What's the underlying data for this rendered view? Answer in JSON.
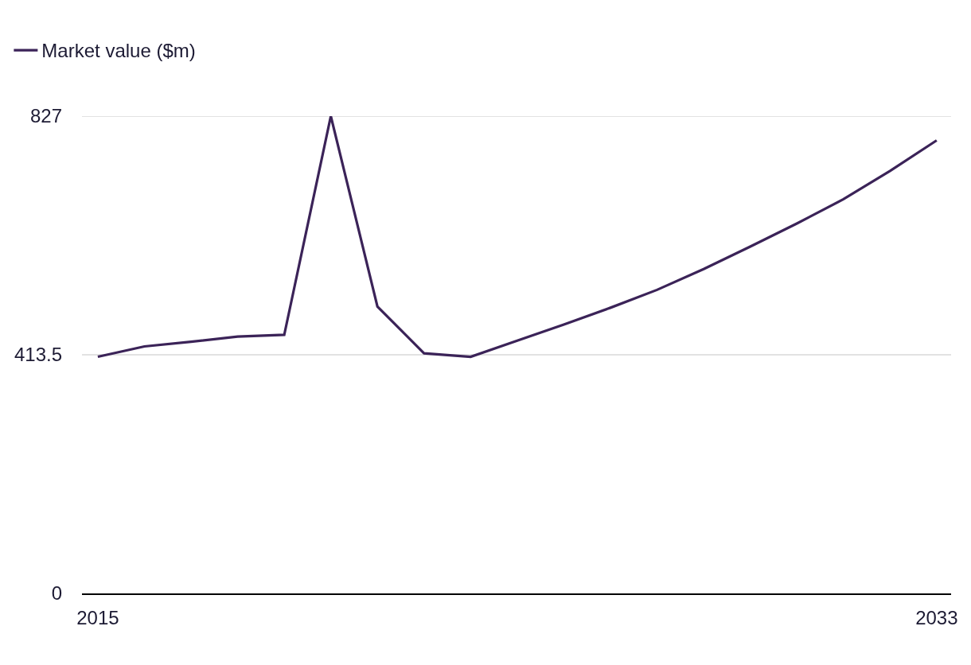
{
  "chart_data": {
    "type": "line",
    "x": [
      2015,
      2016,
      2017,
      2018,
      2019,
      2020,
      2021,
      2022,
      2023,
      2024,
      2025,
      2026,
      2027,
      2028,
      2029,
      2030,
      2031,
      2032,
      2033
    ],
    "series": [
      {
        "name": "Market value ($m)",
        "color": "#3b2358",
        "values": [
          410,
          428,
          436,
          445,
          448,
          827,
          497,
          416,
          410,
          438,
          466,
          495,
          526,
          562,
          601,
          641,
          683,
          732,
          785
        ]
      }
    ],
    "xlim": [
      2014.66,
      2033.31
    ],
    "xticks": [
      2015,
      2033
    ],
    "ylim": [
      0,
      827
    ],
    "yticks": [
      0,
      413.5,
      827
    ],
    "grid": "y",
    "legend": "top left"
  }
}
